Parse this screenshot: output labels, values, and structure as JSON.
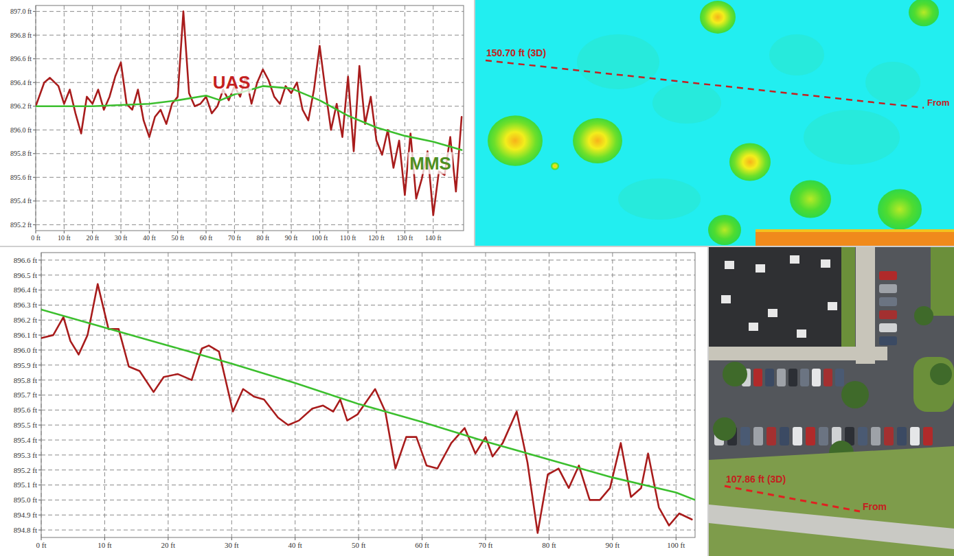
{
  "chart_data": [
    {
      "type": "line",
      "xlim": [
        0,
        150.7
      ],
      "ylim": [
        895.15,
        897.05
      ],
      "xticks": [
        {
          "value": 0,
          "label": "0 ft"
        },
        {
          "value": 10,
          "label": "10 ft"
        },
        {
          "value": 20,
          "label": "20 ft"
        },
        {
          "value": 30,
          "label": "30 ft"
        },
        {
          "value": 40,
          "label": "40 ft"
        },
        {
          "value": 50,
          "label": "50 ft"
        },
        {
          "value": 60,
          "label": "60 ft"
        },
        {
          "value": 70,
          "label": "70 ft"
        },
        {
          "value": 80,
          "label": "80 ft"
        },
        {
          "value": 90,
          "label": "90 ft"
        },
        {
          "value": 100,
          "label": "100 ft"
        },
        {
          "value": 110,
          "label": "110 ft"
        },
        {
          "value": 120,
          "label": "120 ft"
        },
        {
          "value": 130,
          "label": "130 ft"
        },
        {
          "value": 140,
          "label": "140 ft"
        }
      ],
      "yticks": [
        {
          "value": 895.2,
          "label": "895.2 ft"
        },
        {
          "value": 895.4,
          "label": "895.4 ft"
        },
        {
          "value": 895.6,
          "label": "895.6 ft"
        },
        {
          "value": 895.8,
          "label": "895.8 ft"
        },
        {
          "value": 896.0,
          "label": "896.0 ft"
        },
        {
          "value": 896.2,
          "label": "896.2 ft"
        },
        {
          "value": 896.4,
          "label": "896.4 ft"
        },
        {
          "value": 896.6,
          "label": "896.6 ft"
        },
        {
          "value": 896.8,
          "label": "896.8 ft"
        },
        {
          "value": 897.0,
          "label": "897.0 ft"
        }
      ],
      "grid": true,
      "series": [
        {
          "name": "UAS",
          "color": "#a81c1c",
          "x": [
            0,
            3,
            5,
            8,
            10,
            12,
            14,
            16,
            18,
            20,
            22,
            24,
            26,
            28,
            30,
            32,
            34,
            36,
            38,
            40,
            42,
            44,
            46,
            48,
            50,
            52,
            54,
            56,
            58,
            60,
            62,
            64,
            66,
            68,
            70,
            72,
            74,
            76,
            78,
            80,
            82,
            84,
            86,
            88,
            90,
            92,
            94,
            96,
            98,
            100,
            102,
            104,
            106,
            108,
            110,
            112,
            114,
            116,
            118,
            120,
            122,
            124,
            126,
            128,
            130,
            132,
            134,
            136,
            138,
            140,
            142,
            144,
            146,
            148,
            150
          ],
          "values": [
            896.2,
            896.4,
            896.44,
            896.37,
            896.22,
            896.34,
            896.14,
            895.97,
            896.28,
            896.22,
            896.34,
            896.17,
            896.28,
            896.45,
            896.57,
            896.22,
            896.17,
            896.34,
            896.08,
            895.94,
            896.11,
            896.17,
            896.05,
            896.22,
            896.28,
            897.0,
            896.31,
            896.2,
            896.22,
            896.28,
            896.14,
            896.2,
            896.34,
            896.25,
            896.37,
            896.28,
            896.45,
            896.22,
            896.4,
            896.51,
            896.42,
            896.28,
            896.22,
            896.37,
            896.31,
            896.4,
            896.17,
            896.08,
            896.34,
            896.71,
            896.34,
            896.0,
            896.22,
            895.94,
            896.45,
            895.82,
            896.54,
            896.05,
            896.28,
            895.91,
            895.79,
            896.0,
            895.68,
            895.91,
            895.45,
            895.97,
            895.42,
            895.59,
            895.82,
            895.28,
            895.65,
            895.62,
            895.94,
            895.48,
            896.11
          ]
        },
        {
          "name": "MMS",
          "color": "#3cbf2e",
          "x": [
            0,
            10,
            20,
            30,
            40,
            50,
            60,
            65,
            70,
            80,
            90,
            100,
            110,
            120,
            130,
            140,
            150
          ],
          "values": [
            896.2,
            896.2,
            896.2,
            896.21,
            896.22,
            896.25,
            896.29,
            896.25,
            896.3,
            896.37,
            896.35,
            896.25,
            896.12,
            896.02,
            895.95,
            895.9,
            895.83
          ]
        }
      ],
      "annotations": [
        {
          "text": "UAS",
          "x": 69,
          "y": 896.4,
          "color": "#c42020"
        },
        {
          "text": "MMS",
          "x": 139,
          "y": 895.72,
          "color": "#4f8f22"
        }
      ]
    },
    {
      "type": "line",
      "xlim": [
        0,
        103
      ],
      "ylim": [
        894.75,
        896.65
      ],
      "xticks": [
        {
          "value": 0,
          "label": "0 ft"
        },
        {
          "value": 10,
          "label": "10 ft"
        },
        {
          "value": 20,
          "label": "20 ft"
        },
        {
          "value": 30,
          "label": "30 ft"
        },
        {
          "value": 40,
          "label": "40 ft"
        },
        {
          "value": 50,
          "label": "50 ft"
        },
        {
          "value": 60,
          "label": "60 ft"
        },
        {
          "value": 70,
          "label": "70 ft"
        },
        {
          "value": 80,
          "label": "80 ft"
        },
        {
          "value": 90,
          "label": "90 ft"
        },
        {
          "value": 100,
          "label": "100 ft"
        }
      ],
      "yticks": [
        {
          "value": 894.8,
          "label": "894.8 ft"
        },
        {
          "value": 894.9,
          "label": "894.9 ft"
        },
        {
          "value": 895.0,
          "label": "895.0 ft"
        },
        {
          "value": 895.1,
          "label": "895.1 ft"
        },
        {
          "value": 895.2,
          "label": "895.2 ft"
        },
        {
          "value": 895.3,
          "label": "895.3 ft"
        },
        {
          "value": 895.4,
          "label": "895.4 ft"
        },
        {
          "value": 895.5,
          "label": "895.5 ft"
        },
        {
          "value": 895.6,
          "label": "895.6 ft"
        },
        {
          "value": 895.7,
          "label": "895.7 ft"
        },
        {
          "value": 895.8,
          "label": "895.8 ft"
        },
        {
          "value": 895.9,
          "label": "895.9 ft"
        },
        {
          "value": 896.0,
          "label": "896.0 ft"
        },
        {
          "value": 896.1,
          "label": "896.1 ft"
        },
        {
          "value": 896.2,
          "label": "896.2 ft"
        },
        {
          "value": 896.3,
          "label": "896.3 ft"
        },
        {
          "value": 896.4,
          "label": "896.4 ft"
        },
        {
          "value": 896.5,
          "label": "896.5 ft"
        },
        {
          "value": 896.6,
          "label": "896.6 ft"
        }
      ],
      "grid": true,
      "series": [
        {
          "color": "#a81c1c",
          "x": [
            0,
            1.9,
            3.5,
            4.6,
            5.9,
            7.3,
            8.9,
            10.6,
            12.2,
            13.8,
            15.5,
            17.7,
            19.3,
            21.5,
            23.7,
            25.3,
            26.4,
            28.0,
            30.2,
            31.8,
            33.5,
            35.1,
            37.3,
            38.9,
            40.6,
            42.7,
            44.4,
            46.0,
            47.1,
            48.2,
            49.8,
            52.6,
            54.2,
            55.8,
            57.5,
            59.1,
            60.7,
            62.4,
            64.6,
            66.7,
            68.4,
            70.0,
            71.1,
            72.7,
            74.9,
            76.6,
            78.2,
            79.8,
            81.5,
            83.1,
            84.7,
            86.4,
            88.0,
            89.6,
            91.3,
            92.9,
            94.5,
            95.6,
            97.3,
            98.9,
            100.5,
            102.5
          ],
          "values": [
            896.08,
            896.1,
            896.22,
            896.06,
            895.97,
            896.1,
            896.44,
            896.14,
            896.14,
            895.89,
            895.86,
            895.72,
            895.82,
            895.84,
            895.8,
            896.01,
            896.03,
            895.99,
            895.59,
            895.74,
            895.69,
            895.67,
            895.55,
            895.5,
            895.53,
            895.61,
            895.63,
            895.59,
            895.67,
            895.53,
            895.57,
            895.74,
            895.59,
            895.21,
            895.42,
            895.42,
            895.23,
            895.21,
            895.38,
            895.48,
            895.31,
            895.42,
            895.29,
            895.38,
            895.59,
            895.25,
            894.78,
            895.17,
            895.21,
            895.08,
            895.23,
            895.0,
            895.0,
            895.08,
            895.38,
            895.02,
            895.08,
            895.31,
            894.95,
            894.83,
            894.91,
            894.87
          ]
        },
        {
          "color": "#3cbf2e",
          "x": [
            0,
            10,
            20,
            30,
            40,
            50,
            60,
            70,
            80,
            90,
            100,
            103
          ],
          "values": [
            896.27,
            896.15,
            896.03,
            895.91,
            895.78,
            895.64,
            895.52,
            895.39,
            895.27,
            895.15,
            895.05,
            895.0
          ]
        }
      ]
    }
  ],
  "panels": [
    {
      "type": "elevation-map",
      "measure_label": "150.70 ft (3D)",
      "start_label": "From"
    },
    {
      "type": "aerial-photo",
      "measure_label": "107.86 ft (3D)",
      "start_label": "From"
    }
  ]
}
